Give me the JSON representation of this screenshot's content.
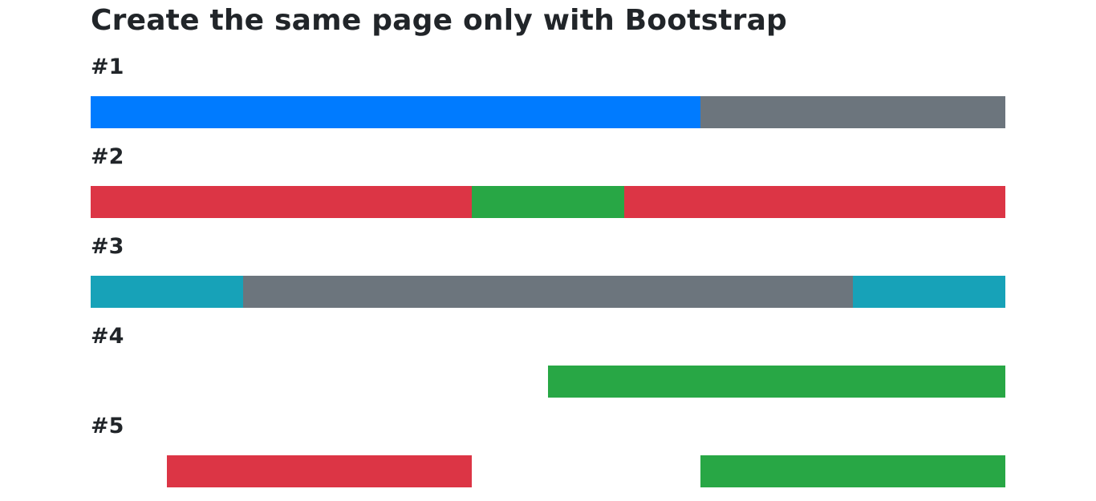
{
  "page": {
    "title": "Create the same page only with Bootstrap"
  },
  "colors": {
    "primary": "#007bff",
    "secondary": "#6c757d",
    "danger": "#dc3545",
    "success": "#28a745",
    "info": "#17a2b8"
  },
  "sections": [
    {
      "label": "#1",
      "segments": [
        {
          "color": "primary",
          "cols": 8
        },
        {
          "color": "secondary",
          "cols": 4
        }
      ]
    },
    {
      "label": "#2",
      "segments": [
        {
          "color": "danger",
          "cols": 5
        },
        {
          "color": "success",
          "cols": 2
        },
        {
          "color": "danger",
          "cols": 5
        }
      ]
    },
    {
      "label": "#3",
      "segments": [
        {
          "color": "info",
          "cols": 2
        },
        {
          "color": "secondary",
          "cols": 8
        },
        {
          "color": "info",
          "cols": 2
        }
      ]
    },
    {
      "label": "#4",
      "segments": [
        {
          "color": "success",
          "cols": 6,
          "offset": 6
        }
      ]
    },
    {
      "label": "#5",
      "segments": [
        {
          "color": "danger",
          "cols": 4,
          "offset": 1
        },
        {
          "color": "success",
          "cols": 4,
          "offset": 3
        }
      ]
    }
  ]
}
